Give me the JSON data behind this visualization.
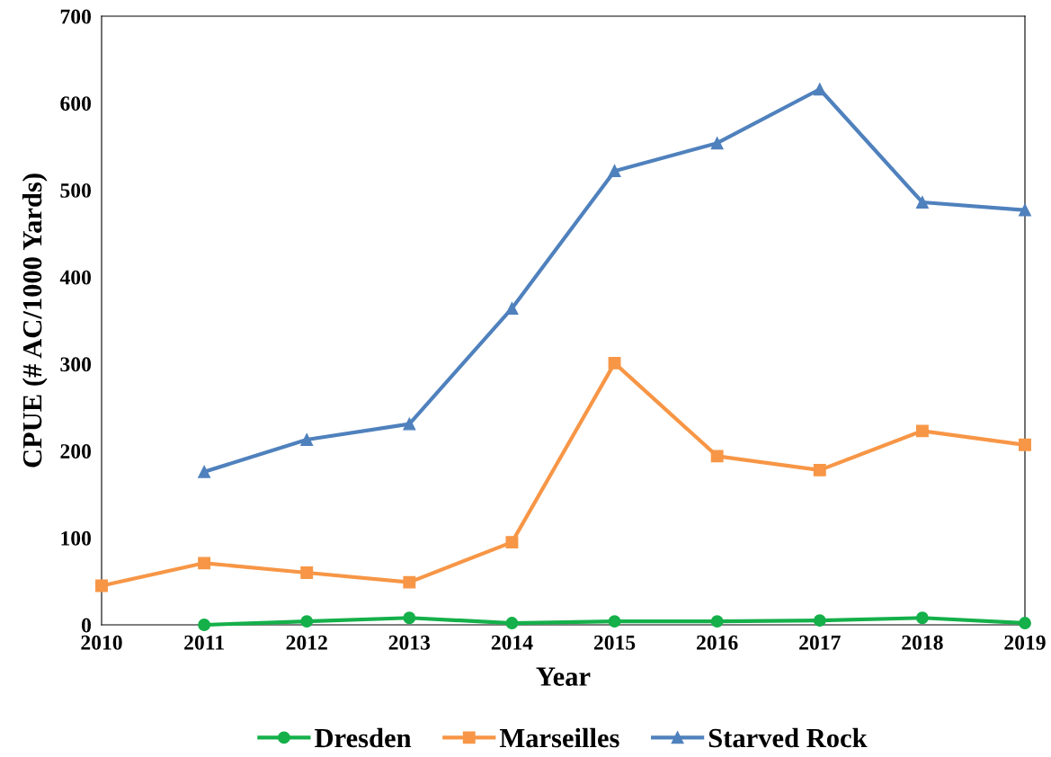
{
  "chart_data": {
    "type": "line",
    "xlabel": "Year",
    "ylabel": "CPUE (# AC/1000 Yards)",
    "xlim": [
      2010,
      2019
    ],
    "xticks": [
      2010,
      2011,
      2012,
      2013,
      2014,
      2015,
      2016,
      2017,
      2018,
      2019
    ],
    "ylim": [
      0,
      700
    ],
    "yticks": [
      0,
      100,
      200,
      300,
      400,
      500,
      600,
      700
    ],
    "grid": false,
    "legend": "bottom",
    "series": [
      {
        "name": "Dresden",
        "color": "#15b04a",
        "marker": "circle",
        "x": [
          2011,
          2012,
          2013,
          2014,
          2015,
          2016,
          2017,
          2018,
          2019
        ],
        "values": [
          0,
          4,
          8,
          2,
          4,
          4,
          5,
          8,
          2
        ]
      },
      {
        "name": "Marseilles",
        "color": "#f79646",
        "marker": "square",
        "x": [
          2010,
          2011,
          2012,
          2013,
          2014,
          2015,
          2016,
          2017,
          2018,
          2019
        ],
        "values": [
          45,
          71,
          60,
          49,
          95,
          301,
          194,
          178,
          223,
          207
        ]
      },
      {
        "name": "Starved Rock",
        "color": "#4f81bd",
        "marker": "triangle",
        "x": [
          2011,
          2012,
          2013,
          2014,
          2015,
          2016,
          2017,
          2018,
          2019
        ],
        "values": [
          176,
          213,
          231,
          364,
          522,
          554,
          616,
          486,
          477
        ]
      }
    ]
  }
}
